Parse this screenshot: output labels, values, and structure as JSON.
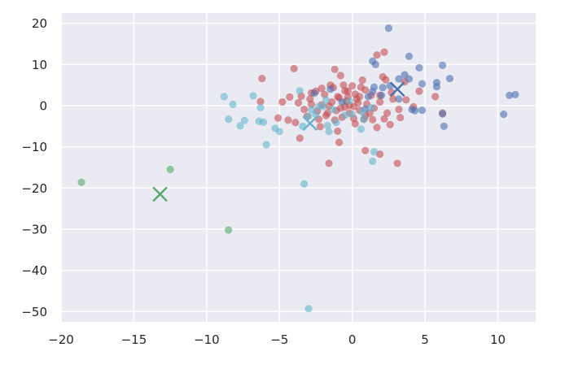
{
  "chart_data": {
    "type": "scatter",
    "title": "",
    "xlabel": "",
    "ylabel": "",
    "xlim": [
      -20,
      12.6
    ],
    "ylim": [
      -52.5,
      22.5
    ],
    "grid": true,
    "background": "#eaeaf2",
    "x_ticks": [
      -20,
      -15,
      -10,
      -5,
      0,
      5,
      10
    ],
    "x_tick_labels": [
      "−20",
      "−15",
      "−10",
      "−5",
      "0",
      "5",
      "10"
    ],
    "y_ticks": [
      20,
      10,
      0,
      -10,
      -20,
      -30,
      -40,
      -50
    ],
    "y_tick_labels": [
      "20",
      "10",
      "0",
      "−10",
      "−20",
      "−30",
      "−40",
      "−50"
    ],
    "legend": null,
    "series": [
      {
        "name": "cluster-red",
        "color": "#c44e52",
        "marker": "circle",
        "points": [
          [
            -4,
            9
          ],
          [
            -0.8,
            7.3
          ],
          [
            -0.6,
            5
          ],
          [
            -0.3,
            3.5
          ],
          [
            0.2,
            2.8
          ],
          [
            0.6,
            4.5
          ],
          [
            0.9,
            3.8
          ],
          [
            1.3,
            2.5
          ],
          [
            -1.5,
            5
          ],
          [
            -2.1,
            4.2
          ],
          [
            -2.8,
            3.1
          ],
          [
            -3.5,
            2.3
          ],
          [
            -4.3,
            2.1
          ],
          [
            -4.8,
            0.9
          ],
          [
            -3.7,
            0.7
          ],
          [
            -2.9,
            1.6
          ],
          [
            -2.1,
            0.2
          ],
          [
            -1.4,
            0.9
          ],
          [
            -0.9,
            1.9
          ],
          [
            -0.4,
            1.1
          ],
          [
            0.1,
            -0.2
          ],
          [
            0.5,
            -1.1
          ],
          [
            1,
            0.4
          ],
          [
            1.5,
            -0.6
          ],
          [
            -0.2,
            -1.8
          ],
          [
            -0.7,
            -2.8
          ],
          [
            -1.2,
            -3.5
          ],
          [
            -1.8,
            -2.4
          ],
          [
            -2.4,
            -1.3
          ],
          [
            -3.1,
            -2.6
          ],
          [
            -3.9,
            -4.1
          ],
          [
            -4.4,
            -3.5
          ],
          [
            -3.6,
            -7.9
          ],
          [
            -2.2,
            -5.1
          ],
          [
            -1,
            -6.2
          ],
          [
            0.2,
            -4.4
          ],
          [
            0.8,
            -3.3
          ],
          [
            1.7,
            -5.3
          ],
          [
            2.2,
            -3.2
          ],
          [
            2.6,
            -4.6
          ],
          [
            0.9,
            -10.9
          ],
          [
            1.9,
            -11.8
          ],
          [
            3.1,
            -14
          ],
          [
            -1.6,
            -14
          ],
          [
            -0.9,
            -8.9
          ],
          [
            -6.2,
            6.6
          ],
          [
            -6.3,
            1
          ],
          [
            -5.1,
            -3
          ],
          [
            1.7,
            12.3
          ],
          [
            2.2,
            13
          ],
          [
            2.1,
            7
          ],
          [
            2.3,
            6.3
          ],
          [
            3.6,
            5.8
          ],
          [
            3.7,
            1.4
          ],
          [
            4.2,
            -0.3
          ],
          [
            4.6,
            3.5
          ],
          [
            5.7,
            2.2
          ],
          [
            6.2,
            -1.8
          ],
          [
            3.3,
            -2.9
          ],
          [
            2.8,
            1.6
          ],
          [
            1.9,
            2.5
          ],
          [
            0.4,
            0.7
          ],
          [
            -0.5,
            -0.3
          ],
          [
            -1.1,
            -1.2
          ],
          [
            -1.6,
            -0.1
          ],
          [
            -2.5,
            3.5
          ],
          [
            -1.3,
            4.4
          ],
          [
            0,
            4.8
          ],
          [
            0.7,
            6.2
          ],
          [
            -0.3,
            2.1
          ],
          [
            -0.8,
            -0.6
          ],
          [
            0.3,
            1.6
          ],
          [
            1.2,
            -1.8
          ],
          [
            -2.8,
            0.3
          ],
          [
            -1.9,
            2.7
          ],
          [
            1.4,
            -3.4
          ],
          [
            2.7,
            3.2
          ],
          [
            -1.2,
            8.8
          ],
          [
            -0.2,
            0.1
          ],
          [
            0.5,
            2.2
          ],
          [
            -0.5,
            3.6
          ],
          [
            0.9,
            -2.5
          ],
          [
            -1.7,
            -1.8
          ],
          [
            -2.3,
            -3.3
          ],
          [
            0.1,
            -3.1
          ],
          [
            1.9,
            0.9
          ],
          [
            3.2,
            -0.9
          ],
          [
            2.4,
            -1.8
          ],
          [
            -3.3,
            -0.9
          ],
          [
            -1,
            2.2
          ]
        ]
      },
      {
        "name": "cluster-blue",
        "color": "#4c72b0",
        "marker": "circle",
        "points": [
          [
            2.5,
            18.8
          ],
          [
            3.9,
            12
          ],
          [
            1.4,
            10.8
          ],
          [
            1.6,
            10
          ],
          [
            4.6,
            9.2
          ],
          [
            6.2,
            9.8
          ],
          [
            6.7,
            6.6
          ],
          [
            5.8,
            5.6
          ],
          [
            5.8,
            4.6
          ],
          [
            4.8,
            5.3
          ],
          [
            3.6,
            7.5
          ],
          [
            3.2,
            6.5
          ],
          [
            3.9,
            6.5
          ],
          [
            2.6,
            4.8
          ],
          [
            2.1,
            4.4
          ],
          [
            1.5,
            4.5
          ],
          [
            1.4,
            3.4
          ],
          [
            1.1,
            2.2
          ],
          [
            3.2,
            1.6
          ],
          [
            4.1,
            -0.9
          ],
          [
            4.3,
            -1.2
          ],
          [
            4.8,
            -1.1
          ],
          [
            6.2,
            -2
          ],
          [
            6.3,
            -5
          ],
          [
            10.4,
            -2.1
          ],
          [
            10.8,
            2.5
          ],
          [
            11.2,
            2.7
          ],
          [
            -0.7,
            0.9
          ],
          [
            -1.5,
            4
          ],
          [
            -2.6,
            3
          ],
          [
            2,
            2.5
          ],
          [
            0.9,
            -0.8
          ]
        ]
      },
      {
        "name": "cluster-cyan",
        "color": "#64b5cd",
        "marker": "circle",
        "points": [
          [
            -8.8,
            2.2
          ],
          [
            -8.2,
            0.3
          ],
          [
            -6.8,
            2.4
          ],
          [
            -6.3,
            -0.5
          ],
          [
            -8.5,
            -3.3
          ],
          [
            -7.4,
            -3.6
          ],
          [
            -7.7,
            -4.9
          ],
          [
            -6.1,
            -4
          ],
          [
            -6.4,
            -3.8
          ],
          [
            -5.3,
            -5.5
          ],
          [
            -5,
            -6.3
          ],
          [
            -5.9,
            -9.5
          ],
          [
            -3.4,
            -5
          ],
          [
            -3,
            -2.6
          ],
          [
            -2.5,
            -2.1
          ],
          [
            -2.3,
            -0.2
          ],
          [
            -1.8,
            1.4
          ],
          [
            -1.3,
            -0.9
          ],
          [
            -0.5,
            -2.3
          ],
          [
            0.7,
            -1.6
          ],
          [
            1.3,
            -0.5
          ],
          [
            0.8,
            -3.3
          ],
          [
            0.6,
            -5.7
          ],
          [
            -1.7,
            -4.8
          ],
          [
            -1.6,
            -6.3
          ],
          [
            -3.3,
            -19
          ],
          [
            -3,
            -49.3
          ],
          [
            1.5,
            -11.2
          ],
          [
            1.4,
            -13.5
          ],
          [
            -3.6,
            3.6
          ],
          [
            -2,
            -0.2
          ],
          [
            -0.2,
            1.1
          ],
          [
            -1.1,
            -4.1
          ],
          [
            0,
            -2.1
          ],
          [
            -2.8,
            -1
          ]
        ]
      },
      {
        "name": "cluster-green",
        "color": "#55a868",
        "marker": "circle",
        "points": [
          [
            -18.6,
            -18.6
          ],
          [
            -12.5,
            -15.5
          ],
          [
            -8.5,
            -30.2
          ]
        ]
      }
    ],
    "centroids": [
      {
        "name": "centroid-blue",
        "color": "#4c72b0",
        "marker": "x",
        "x": 3.1,
        "y": 4.0
      },
      {
        "name": "centroid-cyan",
        "color": "#64b5cd",
        "marker": "x",
        "x": -2.9,
        "y": -4.3
      },
      {
        "name": "centroid-green",
        "color": "#55a868",
        "marker": "x",
        "x": -13.2,
        "y": -21.5
      }
    ]
  }
}
